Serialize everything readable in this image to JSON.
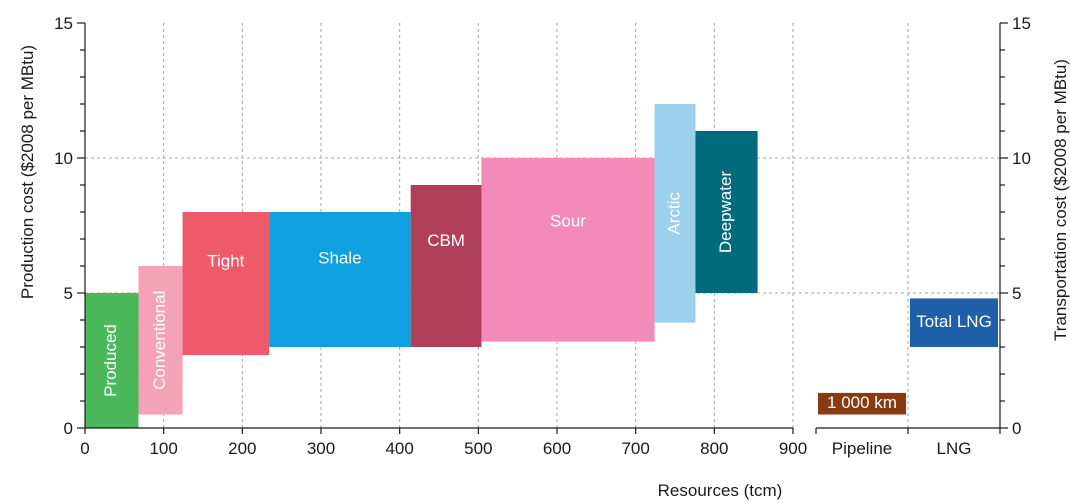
{
  "chart_data": {
    "type": "bar",
    "subtype": "floating-range",
    "xlabel": "Resources (tcm)",
    "ylabel": "Production cost ($2008 per MBtu)",
    "y2label": "Transportation cost ($2008 per MBtu)",
    "xlim": [
      0,
      900
    ],
    "ylim": [
      0,
      15
    ],
    "xticks": [
      0,
      100,
      200,
      300,
      400,
      500,
      600,
      700,
      800,
      900
    ],
    "yticks": [
      0,
      5,
      10,
      15
    ],
    "grid": true,
    "resources": [
      {
        "name": "Produced",
        "x0": 0,
        "x1": 68,
        "ymin": 0,
        "ymax": 5,
        "color": "#4cb85c",
        "vertical": true
      },
      {
        "name": "Conventional",
        "x0": 68,
        "x1": 124,
        "ymin": 0.5,
        "ymax": 6,
        "color": "#f4a2b8",
        "vertical": true
      },
      {
        "name": "Tight",
        "x0": 124,
        "x1": 234,
        "ymin": 2.7,
        "ymax": 8,
        "color": "#ef5a6a",
        "vertical": false
      },
      {
        "name": "Shale",
        "x0": 234,
        "x1": 414,
        "ymin": 3,
        "ymax": 8,
        "color": "#0fa0e0",
        "vertical": false
      },
      {
        "name": "CBM",
        "x0": 414,
        "x1": 504,
        "ymin": 3,
        "ymax": 9,
        "color": "#b0405a",
        "vertical": false
      },
      {
        "name": "Sour",
        "x0": 504,
        "x1": 724,
        "ymin": 3.2,
        "ymax": 10,
        "color": "#f28bb8",
        "vertical": false
      },
      {
        "name": "Arctic",
        "x0": 724,
        "x1": 776,
        "ymin": 3.9,
        "ymax": 12,
        "color": "#9dd0ea",
        "vertical": true
      },
      {
        "name": "Deepwater",
        "x0": 776,
        "x1": 855,
        "ymin": 5,
        "ymax": 11,
        "color": "#006b7d",
        "vertical": true
      }
    ],
    "transport_categories": [
      "Pipeline",
      "LNG"
    ],
    "transport": [
      {
        "name": "1 000 km",
        "category": "Pipeline",
        "ymin": 0.5,
        "ymax": 1.3,
        "color": "#8a3a10"
      },
      {
        "name": "Total LNG",
        "category": "LNG",
        "ymin": 3,
        "ymax": 4.8,
        "color": "#1f5fa8"
      }
    ]
  }
}
